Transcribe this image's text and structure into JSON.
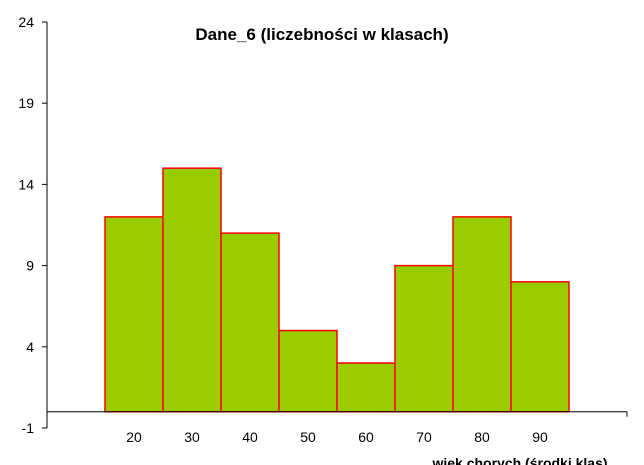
{
  "chart_data": {
    "type": "bar",
    "title": "Dane_6 (liczebności w klasach)",
    "xlabel": "wiek chorych (środki klas)",
    "ylabel": "",
    "categories": [
      "20",
      "30",
      "40",
      "50",
      "60",
      "70",
      "80",
      "90"
    ],
    "values": [
      12,
      15,
      11,
      5,
      3,
      9,
      12,
      8
    ],
    "ylim": [
      -1,
      24
    ],
    "yticks": [
      "-1",
      "4",
      "9",
      "14",
      "19",
      "24"
    ],
    "grid": false,
    "legend": "none",
    "colors": {
      "bar_fill": "#99CC00",
      "bar_stroke": "#FF0000",
      "axis": "#000000"
    }
  }
}
